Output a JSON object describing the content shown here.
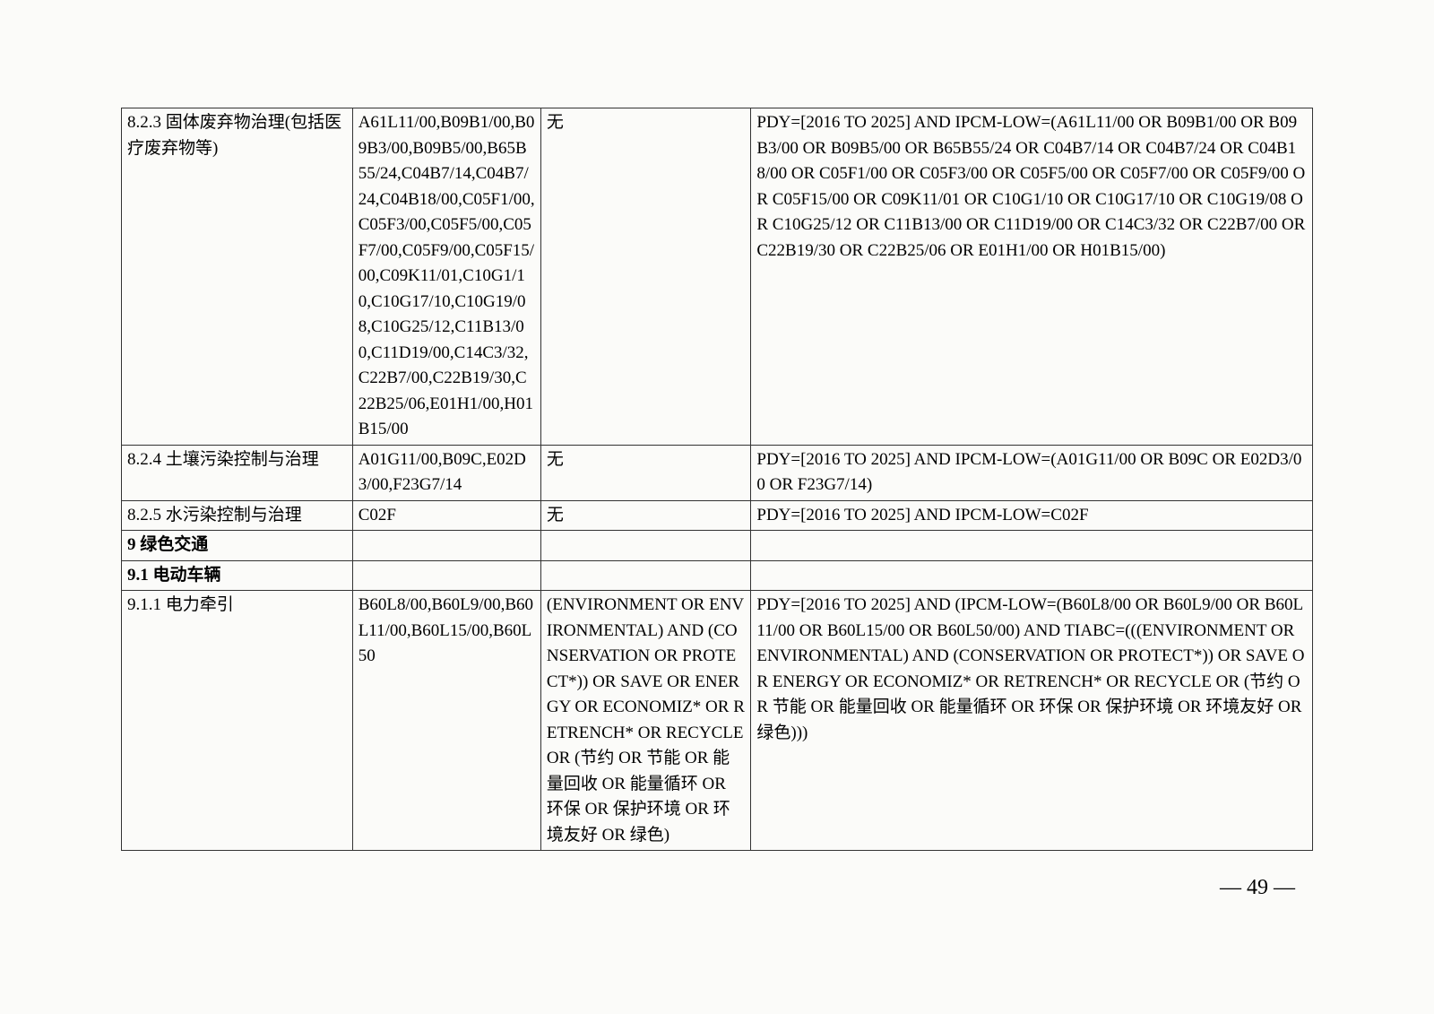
{
  "table": {
    "rows": [
      {
        "cells": [
          "8.2.3 固体废弃物治理(包括医疗废弃物等)",
          "A61L11/00,B09B1/00,B09B3/00,B09B5/00,B65B55/24,C04B7/14,C04B7/24,C04B18/00,C05F1/00,C05F3/00,C05F5/00,C05F7/00,C05F9/00,C05F15/00,C09K11/01,C10G1/10,C10G17/10,C10G19/08,C10G25/12,C11B13/00,C11D19/00,C14C3/32,C22B7/00,C22B19/30,C22B25/06,E01H1/00,H01B15/00",
          "无",
          "PDY=[2016 TO 2025] AND IPCM-LOW=(A61L11/00 OR B09B1/00 OR B09B3/00 OR B09B5/00 OR B65B55/24 OR C04B7/14 OR C04B7/24 OR C04B18/00 OR C05F1/00 OR C05F3/00 OR C05F5/00 OR C05F7/00 OR C05F9/00 OR C05F15/00 OR C09K11/01 OR C10G1/10 OR C10G17/10 OR C10G19/08 OR C10G25/12 OR C11B13/00 OR C11D19/00 OR C14C3/32 OR C22B7/00 OR C22B19/30 OR C22B25/06 OR E01H1/00 OR H01B15/00)"
        ],
        "type": "data"
      },
      {
        "cells": [
          "8.2.4 土壤污染控制与治理",
          "A01G11/00,B09C,E02D3/00,F23G7/14",
          "无",
          "PDY=[2016 TO 2025] AND IPCM-LOW=(A01G11/00 OR B09C OR E02D3/00 OR F23G7/14)"
        ],
        "type": "data"
      },
      {
        "cells": [
          "8.2.5 水污染控制与治理",
          "C02F",
          "无",
          "PDY=[2016 TO 2025] AND IPCM-LOW=C02F"
        ],
        "type": "data"
      },
      {
        "cells": [
          "9 绿色交通",
          "",
          "",
          ""
        ],
        "type": "section"
      },
      {
        "cells": [
          "9.1 电动车辆",
          "",
          "",
          ""
        ],
        "type": "section"
      },
      {
        "cells": [
          "9.1.1 电力牵引",
          "B60L8/00,B60L9/00,B60L11/00,B60L15/00,B60L50",
          "(ENVIRONMENT OR ENVIRONMENTAL) AND (CONSERVATION OR PROTECT*)) OR SAVE OR ENERGY OR ECONOMIZ* OR RETRENCH* OR RECYCLE OR (节约 OR 节能 OR 能量回收 OR 能量循环 OR 环保 OR 保护环境 OR 环境友好 OR 绿色)",
          "PDY=[2016 TO 2025] AND (IPCM-LOW=(B60L8/00 OR B60L9/00 OR B60L11/00 OR B60L15/00 OR B60L50/00) AND TIABC=(((ENVIRONMENT OR ENVIRONMENTAL) AND (CONSERVATION OR PROTECT*)) OR SAVE OR ENERGY OR ECONOMIZ* OR RETRENCH* OR RECYCLE OR (节约 OR 节能 OR 能量回收 OR 能量循环 OR 环保 OR 保护环境 OR 环境友好 OR 绿色)))"
        ],
        "type": "data"
      }
    ]
  },
  "page_number": "— 49 —"
}
